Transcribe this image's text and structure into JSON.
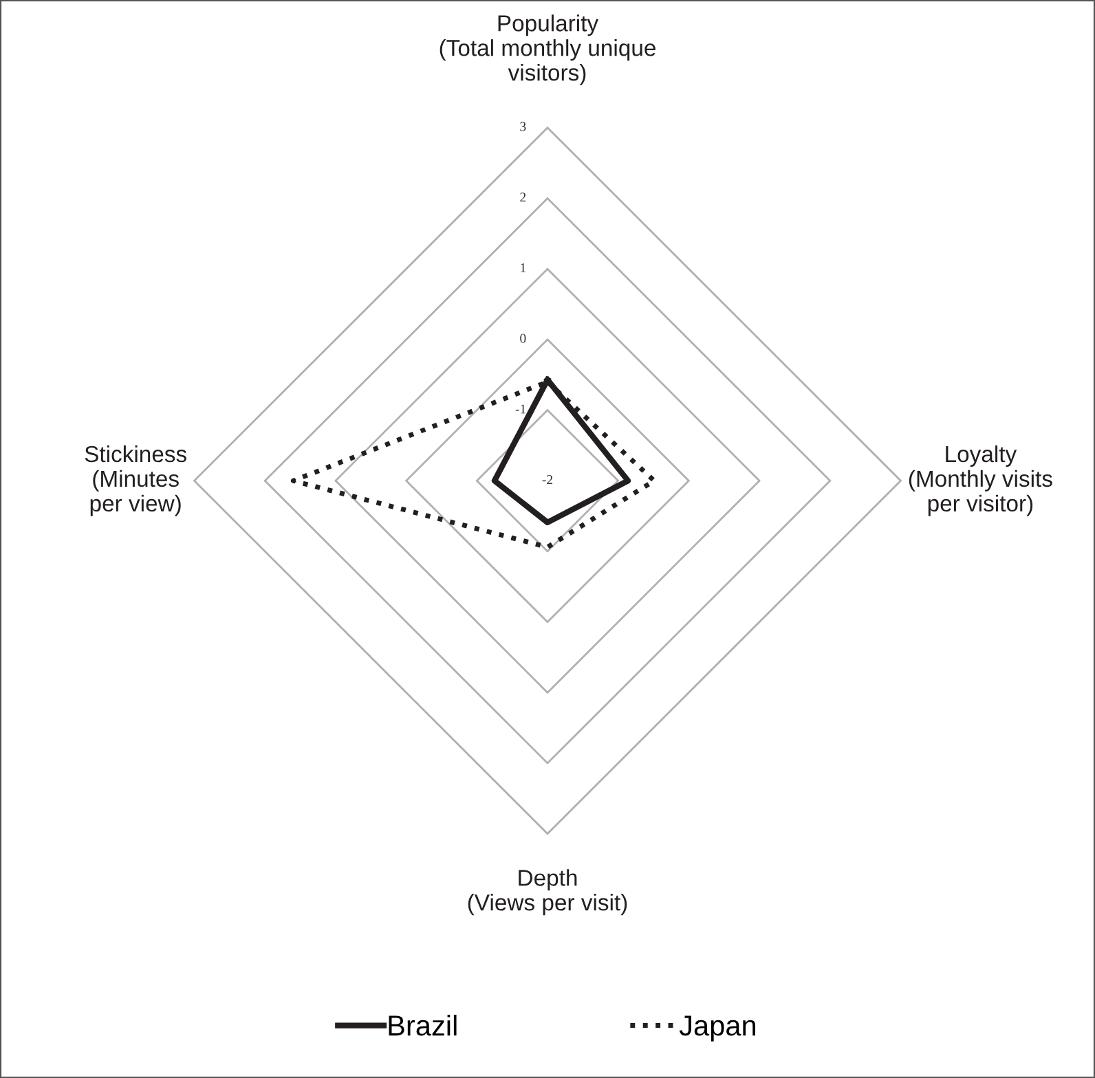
{
  "chart_data": {
    "type": "radar",
    "categories": [
      "Popularity\n(Total monthly unique\nvisitors)",
      "Loyalty\n(Monthly visits\nper visitor)",
      "Depth\n(Views per visit)",
      "Stickiness\n(Minutes\nper view)"
    ],
    "series": [
      {
        "name": "Brazil",
        "color": "#231f20",
        "line_style": "solid",
        "values": [
          -0.57,
          -0.86,
          -1.41,
          -1.25
        ]
      },
      {
        "name": "Japan",
        "color": "#231f20",
        "line_style": "dotted",
        "values": [
          -0.6,
          -0.49,
          -1.06,
          1.6
        ]
      }
    ],
    "ylim": [
      -2,
      3
    ],
    "yticks": [
      -2,
      -1,
      0,
      1,
      2,
      3
    ],
    "grid": true,
    "legend": "bottom"
  }
}
